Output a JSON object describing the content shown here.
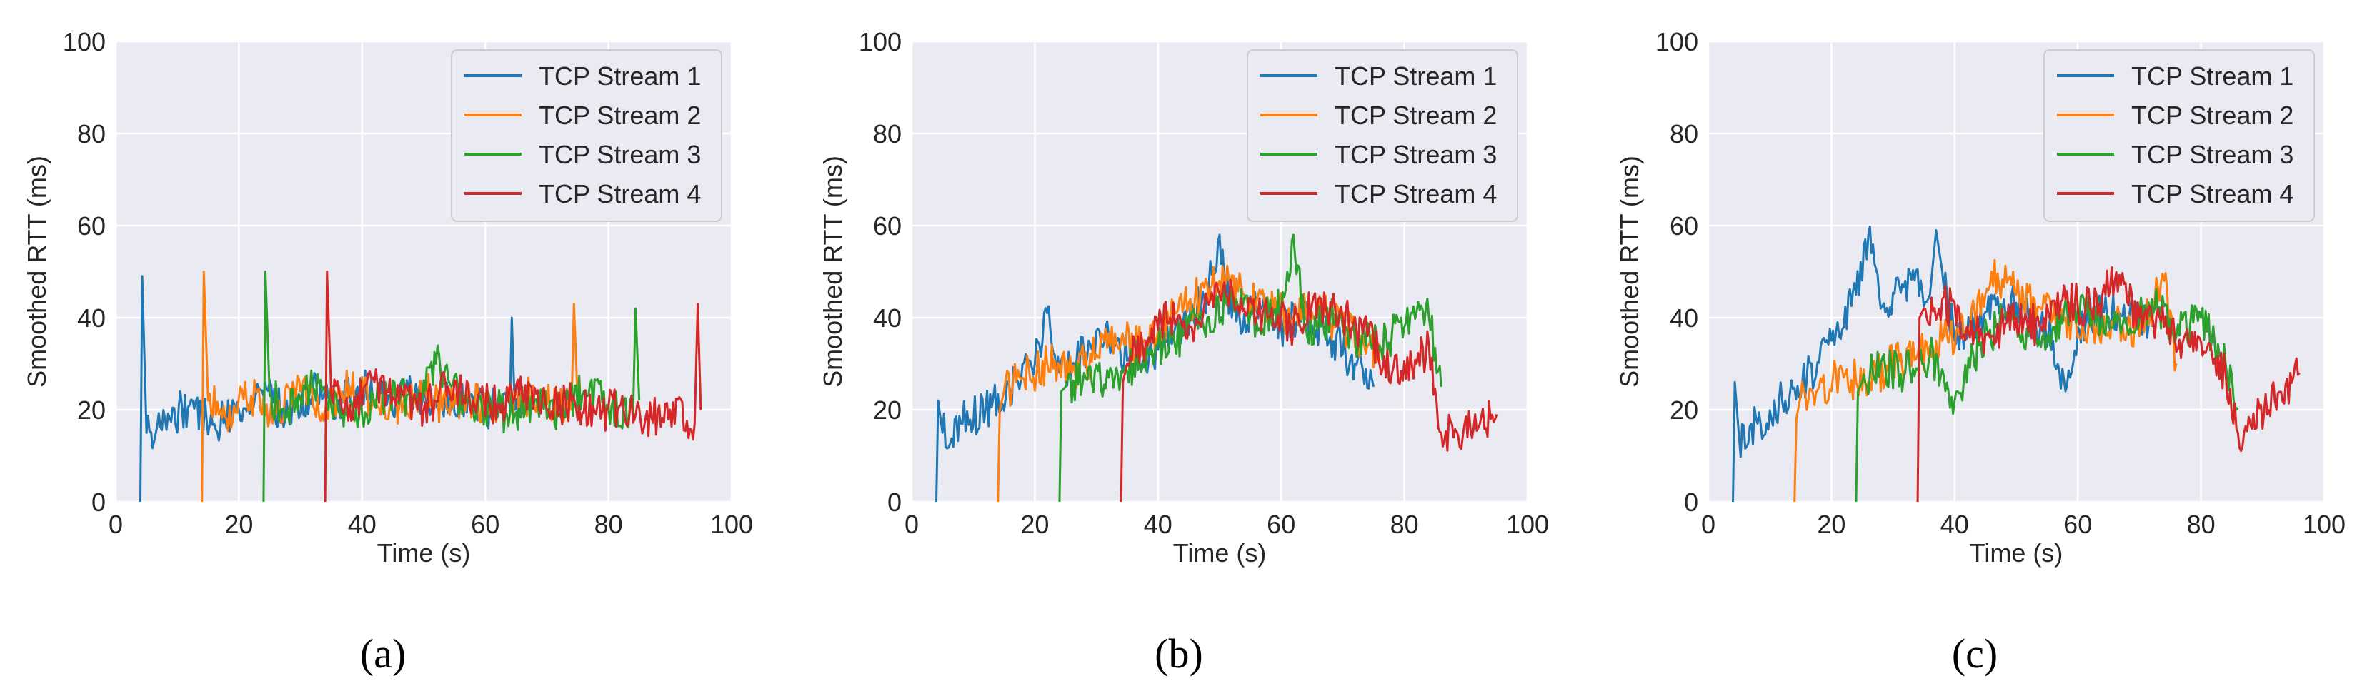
{
  "colors": {
    "plot_bg": "#EAEAF2",
    "grid": "#FFFFFF",
    "text": "#262626",
    "series": [
      "#1F77B4",
      "#FF7F0E",
      "#2CA02C",
      "#D62728"
    ]
  },
  "chart_data": [
    {
      "type": "line",
      "caption": "(a)",
      "xlabel": "Time (s)",
      "ylabel": "Smoothed RTT (ms)",
      "xlim": [
        0,
        100
      ],
      "ylim": [
        0,
        100
      ],
      "xticks": [
        "0",
        "20",
        "40",
        "60",
        "80",
        "100"
      ],
      "yticks": [
        "0",
        "20",
        "40",
        "60",
        "80",
        "100"
      ],
      "grid": true,
      "legend_position": "top-right",
      "series": [
        {
          "name": "TCP Stream 1",
          "x": [
            4,
            4.3,
            5,
            8,
            12,
            16,
            20,
            24,
            28,
            32,
            36,
            40,
            44,
            48,
            52,
            56,
            60,
            64,
            64.3,
            64.8,
            66
          ],
          "y": [
            0,
            49,
            15,
            18,
            21,
            17,
            20,
            23,
            19,
            24,
            22,
            25,
            21,
            24,
            21,
            22,
            20,
            21,
            40,
            20,
            19
          ]
        },
        {
          "name": "TCP Stream 2",
          "x": [
            14,
            14.3,
            15,
            18,
            22,
            26,
            30,
            34,
            38,
            42,
            46,
            50,
            54,
            58,
            62,
            66,
            70,
            74,
            74.4,
            75
          ],
          "y": [
            0,
            50,
            22,
            18,
            23,
            19,
            24,
            20,
            25,
            22,
            21,
            24,
            20,
            22,
            19,
            23,
            21,
            20,
            43,
            22
          ]
        },
        {
          "name": "TCP Stream 3",
          "x": [
            24,
            24.3,
            25,
            28,
            32,
            36,
            40,
            44,
            48,
            52,
            56,
            60,
            64,
            68,
            72,
            76,
            80,
            84,
            84.4,
            85
          ],
          "y": [
            0,
            50,
            23,
            20,
            25,
            21,
            19,
            24,
            22,
            30,
            23,
            21,
            19,
            22,
            20,
            24,
            21,
            19,
            42,
            22
          ]
        },
        {
          "name": "TCP Stream 4",
          "x": [
            34,
            34.3,
            35,
            38,
            42,
            46,
            50,
            54,
            58,
            62,
            66,
            70,
            74,
            78,
            82,
            86,
            90,
            94,
            94.5,
            95
          ],
          "y": [
            0,
            50,
            23,
            21,
            26,
            22,
            20,
            25,
            22,
            21,
            23,
            20,
            22,
            19,
            21,
            18,
            20,
            17,
            43,
            20
          ]
        }
      ]
    },
    {
      "type": "line",
      "caption": "(b)",
      "xlabel": "Time (s)",
      "ylabel": "Smoothed RTT (ms)",
      "xlim": [
        0,
        100
      ],
      "ylim": [
        0,
        100
      ],
      "xticks": [
        "0",
        "20",
        "40",
        "60",
        "80",
        "100"
      ],
      "yticks": [
        "0",
        "20",
        "40",
        "60",
        "80",
        "100"
      ],
      "grid": true,
      "legend_position": "top-right",
      "series": [
        {
          "name": "TCP Stream 1",
          "x": [
            4,
            4.3,
            5,
            8,
            12,
            16,
            20,
            22,
            24,
            28,
            32,
            36,
            40,
            44,
            48,
            50,
            52,
            56,
            60,
            64,
            68,
            72,
            75
          ],
          "y": [
            0,
            22,
            15,
            17,
            20,
            24,
            30,
            41,
            28,
            32,
            36,
            30,
            33,
            38,
            45,
            58,
            40,
            42,
            38,
            40,
            36,
            30,
            25
          ]
        },
        {
          "name": "TCP Stream 2",
          "x": [
            14,
            14.3,
            15,
            18,
            22,
            26,
            30,
            34,
            38,
            42,
            46,
            50,
            54,
            58,
            62,
            66,
            70,
            74,
            76
          ],
          "y": [
            0,
            20,
            24,
            27,
            30,
            28,
            32,
            35,
            34,
            40,
            44,
            48,
            45,
            42,
            40,
            42,
            38,
            34,
            30
          ]
        },
        {
          "name": "TCP Stream 3",
          "x": [
            24,
            24.3,
            25,
            28,
            32,
            36,
            40,
            44,
            48,
            52,
            56,
            60,
            62,
            64,
            68,
            72,
            76,
            80,
            84,
            86
          ],
          "y": [
            0,
            24,
            25,
            28,
            27,
            30,
            34,
            36,
            40,
            44,
            39,
            42,
            58,
            38,
            40,
            36,
            34,
            38,
            40,
            25
          ]
        },
        {
          "name": "TCP Stream 4",
          "x": [
            34,
            34.3,
            35,
            38,
            42,
            46,
            50,
            54,
            58,
            62,
            66,
            70,
            74,
            78,
            82,
            84,
            86,
            88,
            92,
            95
          ],
          "y": [
            0,
            26,
            30,
            35,
            40,
            38,
            45,
            42,
            40,
            38,
            44,
            40,
            36,
            28,
            30,
            34,
            15,
            14,
            16,
            19
          ]
        }
      ]
    },
    {
      "type": "line",
      "caption": "(c)",
      "xlabel": "Time (s)",
      "ylabel": "Smoothed RTT (ms)",
      "xlim": [
        0,
        100
      ],
      "ylim": [
        0,
        100
      ],
      "xticks": [
        "0",
        "20",
        "40",
        "60",
        "80",
        "100"
      ],
      "yticks": [
        "0",
        "20",
        "40",
        "60",
        "80",
        "100"
      ],
      "grid": true,
      "legend_position": "top-right",
      "series": [
        {
          "name": "TCP Stream 1",
          "x": [
            4,
            4.3,
            5,
            8,
            12,
            16,
            20,
            24,
            26,
            28,
            32,
            36,
            37,
            38,
            40,
            44,
            48,
            52,
            56,
            58,
            60,
            64,
            68,
            72
          ],
          "y": [
            0,
            26,
            14,
            17,
            22,
            27,
            35,
            45,
            58,
            42,
            48,
            45,
            59,
            50,
            35,
            38,
            44,
            40,
            35,
            24,
            38,
            42,
            40,
            38
          ]
        },
        {
          "name": "TCP Stream 2",
          "x": [
            14,
            14.3,
            15,
            18,
            22,
            26,
            30,
            34,
            38,
            42,
            46,
            50,
            54,
            58,
            62,
            66,
            70,
            74,
            76
          ],
          "y": [
            0,
            18,
            23,
            25,
            27,
            26,
            30,
            32,
            35,
            38,
            50,
            45,
            42,
            40,
            38,
            40,
            36,
            48,
            30
          ]
        },
        {
          "name": "TCP Stream 3",
          "x": [
            24,
            24.3,
            25,
            28,
            32,
            36,
            40,
            44,
            48,
            52,
            56,
            60,
            64,
            68,
            72,
            76,
            80,
            84,
            86
          ],
          "y": [
            0,
            24,
            26,
            30,
            28,
            32,
            22,
            34,
            40,
            36,
            38,
            42,
            40,
            38,
            44,
            36,
            40,
            30,
            20
          ]
        },
        {
          "name": "TCP Stream 4",
          "x": [
            34,
            34.3,
            35,
            38,
            42,
            46,
            50,
            54,
            58,
            62,
            66,
            70,
            74,
            78,
            82,
            84,
            86,
            88,
            92,
            96
          ],
          "y": [
            0,
            40,
            42,
            44,
            38,
            36,
            40,
            38,
            44,
            42,
            48,
            40,
            38,
            34,
            30,
            28,
            15,
            17,
            22,
            28
          ]
        }
      ]
    }
  ]
}
